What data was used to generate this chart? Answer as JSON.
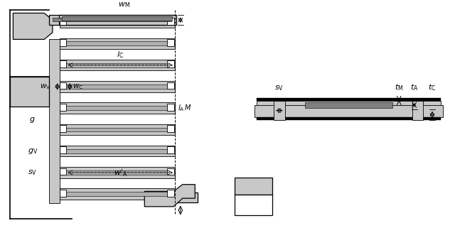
{
  "bg_color": "#ffffff",
  "light_gray": "#c8c8c8",
  "mid_gray": "#b0b0b0",
  "dark_gray": "#808080",
  "black": "#000000",
  "fig_width": 6.4,
  "fig_height": 3.21
}
